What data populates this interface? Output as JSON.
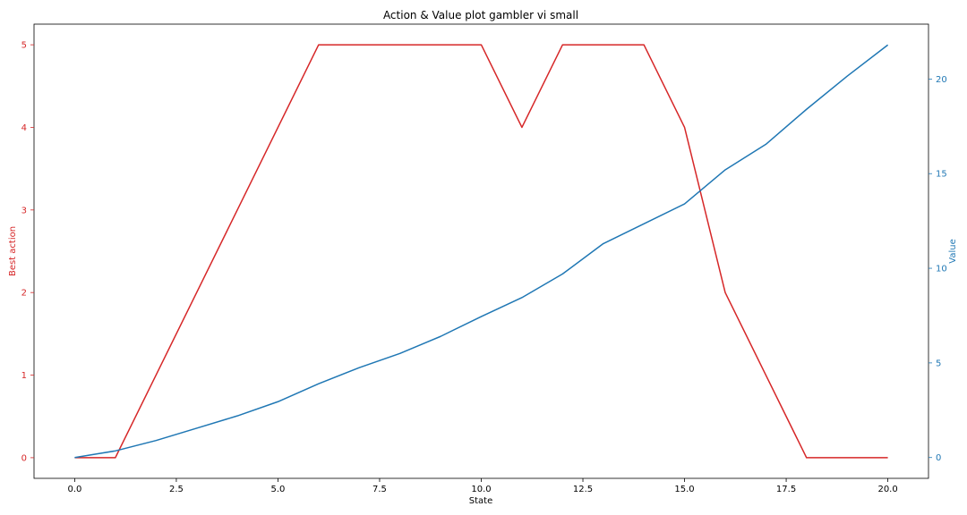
{
  "chart_data": {
    "type": "line",
    "title": "Action & Value plot gambler vi small",
    "xlabel": "State",
    "ylabel_left": "Best action",
    "ylabel_right": "Value",
    "xlim": [
      -1.0,
      21.0
    ],
    "ylim_left": [
      -0.25,
      5.25
    ],
    "ylim_right": [
      -1.1,
      22.9
    ],
    "xticks": [
      "0.0",
      "2.5",
      "5.0",
      "7.5",
      "10.0",
      "12.5",
      "15.0",
      "17.5",
      "20.0"
    ],
    "yticks_left": [
      "0",
      "1",
      "2",
      "3",
      "4",
      "5"
    ],
    "yticks_right": [
      "0",
      "5",
      "10",
      "15",
      "20"
    ],
    "grid": false,
    "x": [
      0,
      1,
      2,
      3,
      4,
      5,
      6,
      7,
      8,
      9,
      10,
      11,
      12,
      13,
      14,
      15,
      16,
      17,
      18,
      19,
      20
    ],
    "series": [
      {
        "axis": "left",
        "color": "#d62728",
        "values": [
          0,
          0,
          1,
          2,
          3,
          4,
          5,
          5,
          5,
          5,
          5,
          4,
          5,
          5,
          5,
          4,
          2,
          1,
          0,
          0,
          0
        ]
      },
      {
        "axis": "right",
        "color": "#1f77b4",
        "values": [
          0,
          0.35,
          0.9,
          1.55,
          2.2,
          2.95,
          3.9,
          4.75,
          5.5,
          6.4,
          7.45,
          8.45,
          9.7,
          11.3,
          12.35,
          13.4,
          15.2,
          16.55,
          18.4,
          20.15,
          21.8
        ]
      }
    ]
  }
}
